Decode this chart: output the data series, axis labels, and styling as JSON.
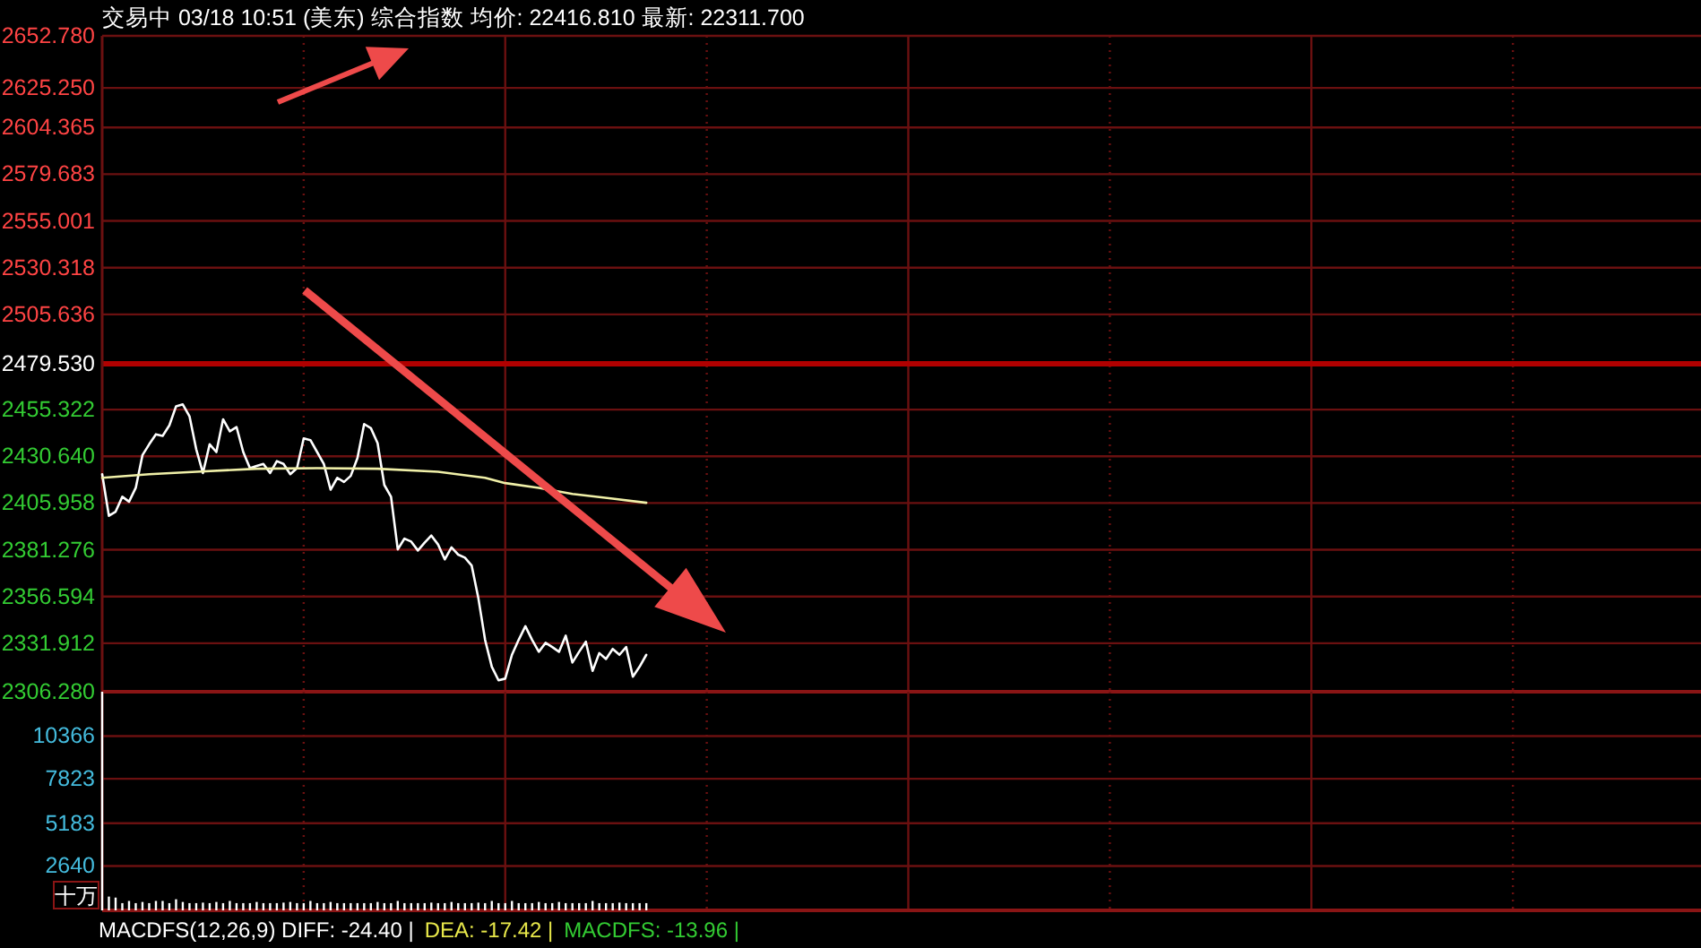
{
  "chart_data": [
    {
      "type": "line",
      "title": "交易中 03/18 10:51 (美东) 综合指数 均价: 22416.810 最新: 22311.700",
      "categories": [
        null,
        null,
        null,
        null,
        null,
        null,
        null,
        null,
        null,
        null,
        null,
        null,
        null,
        null,
        null,
        null,
        null,
        null,
        null,
        null,
        null,
        null,
        null,
        null,
        null,
        null,
        null,
        null,
        null,
        null,
        null,
        null,
        null,
        null,
        null,
        null,
        null,
        null,
        null,
        null,
        null,
        null,
        null,
        null,
        null,
        null,
        null,
        null,
        null,
        null,
        null,
        null,
        null,
        null,
        null,
        null,
        null,
        null,
        null,
        null,
        null,
        null,
        null,
        null,
        null,
        null,
        null,
        null,
        null,
        null,
        null,
        null,
        null,
        null,
        null,
        null,
        null,
        null,
        null,
        null,
        null,
        null,
        null,
        null,
        null,
        null,
        null,
        null,
        null,
        null,
        null,
        null,
        null,
        null,
        null,
        null,
        null,
        null,
        null,
        null,
        null,
        null,
        null,
        null,
        null,
        null,
        null,
        null,
        null,
        null,
        null,
        null,
        null,
        null,
        null,
        null,
        null,
        null,
        null,
        null,
        null,
        null,
        null,
        null,
        null,
        null,
        null,
        null,
        null,
        null,
        null,
        null,
        null,
        null,
        null,
        null,
        null,
        null,
        null,
        null,
        null,
        null,
        null,
        null,
        null,
        null,
        null,
        null,
        null,
        null,
        null,
        null,
        null,
        null,
        null,
        null,
        null,
        null,
        null,
        null,
        null,
        null,
        null,
        null,
        null,
        null,
        null,
        null,
        null,
        null,
        null,
        null,
        null,
        null,
        null,
        null,
        null,
        null,
        null,
        null,
        null,
        null,
        null,
        null,
        null,
        null,
        null,
        null,
        null,
        null,
        null,
        null,
        null,
        null,
        null,
        null,
        null,
        null,
        null,
        null,
        null,
        null,
        null,
        null,
        null,
        null,
        null,
        null,
        null,
        null,
        null,
        null,
        null,
        null,
        null,
        null,
        null,
        null,
        null,
        null,
        null,
        null,
        null,
        null,
        null,
        null,
        null,
        null,
        null,
        null,
        null,
        null,
        null,
        null,
        null,
        null,
        null,
        null,
        null
      ],
      "series": [
        {
          "color": "#ffffff",
          "values": [
            2421.2,
            2399.2,
            2401.4,
            2409.3,
            2406.7,
            2414.0,
            2431.3,
            2437.0,
            2442.3,
            2441.4,
            2447.0,
            2457.1,
            2458.1,
            2451.8,
            2434.4,
            2421.8,
            2437.0,
            2432.9,
            2450.2,
            2443.9,
            2446.1,
            2432.9,
            2424.4,
            2425.6,
            2426.6,
            2421.8,
            2428.1,
            2426.6,
            2421.2,
            2424.4,
            2440.1,
            2439.2,
            2432.9,
            2426.6,
            2413.0,
            2419.3,
            2417.1,
            2420.3,
            2429.7,
            2447.7,
            2445.5,
            2437.6,
            2415.5,
            2409.3,
            2381.5,
            2387.2,
            2385.6,
            2380.9,
            2385.0,
            2388.8,
            2384.1,
            2376.2,
            2382.5,
            2378.7,
            2377.1,
            2373.0,
            2355.7,
            2333.7,
            2319.5,
            2312.3,
            2313.2,
            2325.8,
            2333.7,
            2340.9,
            2333.7,
            2327.4,
            2332.1,
            2329.9,
            2327.4,
            2335.9,
            2321.7,
            2327.4,
            2332.7,
            2317.3,
            2326.7,
            2323.6,
            2328.9,
            2325.8,
            2329.9,
            2314.2,
            2319.5,
            2325.8,
            null,
            null,
            null,
            null,
            null,
            null,
            null,
            null,
            null,
            null,
            null,
            null,
            null,
            null,
            null,
            null,
            null,
            null,
            null,
            null,
            null,
            null,
            null,
            null,
            null,
            null,
            null,
            null,
            null,
            null,
            null,
            null,
            null,
            null,
            null,
            null,
            null,
            null,
            null,
            null,
            null,
            null,
            null,
            null,
            null,
            null,
            null,
            null,
            null,
            null,
            null,
            null,
            null,
            null,
            null,
            null,
            null,
            null,
            null,
            null,
            null,
            null,
            null,
            null,
            null,
            null,
            null,
            null,
            null,
            null,
            null,
            null,
            null,
            null,
            null,
            null,
            null,
            null,
            null,
            null,
            null,
            null,
            null,
            null,
            null,
            null,
            null,
            null,
            null,
            null,
            null,
            null,
            null,
            null,
            null,
            null,
            null,
            null,
            null,
            null,
            null,
            null,
            null,
            null,
            null,
            null,
            null,
            null,
            null,
            null,
            null,
            null,
            null,
            null,
            null,
            null,
            null,
            null,
            null,
            null,
            null,
            null,
            null,
            null,
            null,
            null,
            null,
            null,
            null,
            null,
            null,
            null,
            null,
            null,
            null,
            null,
            null,
            null,
            null,
            null,
            null,
            null,
            null,
            null,
            null,
            null,
            null,
            null,
            null,
            null,
            null,
            null,
            null,
            null,
            null,
            null,
            null
          ]
        },
        {
          "color": "#f0f0a8",
          "values": [
            2419.3,
            null,
            null,
            null,
            null,
            null,
            null,
            2421.2,
            null,
            null,
            null,
            null,
            null,
            null,
            2422.5,
            null,
            null,
            null,
            null,
            null,
            null,
            null,
            null,
            2424.1,
            null,
            null,
            null,
            null,
            null,
            null,
            null,
            null,
            2424.4,
            null,
            null,
            null,
            null,
            null,
            null,
            null,
            null,
            2424.1,
            null,
            null,
            null,
            null,
            null,
            null,
            null,
            null,
            2422.5,
            null,
            null,
            null,
            null,
            null,
            null,
            2419.3,
            null,
            null,
            2416.5,
            null,
            null,
            null,
            null,
            2414.0,
            null,
            null,
            null,
            null,
            2410.8,
            null,
            null,
            null,
            null,
            null,
            2408.3,
            null,
            null,
            null,
            null,
            2406.1,
            null,
            null,
            null,
            null,
            null,
            null,
            null,
            null,
            null,
            null,
            null,
            null,
            null,
            null,
            null,
            null,
            null,
            null,
            null,
            null,
            null,
            null,
            null,
            null,
            null,
            null,
            null,
            null,
            null,
            null,
            null,
            null,
            null,
            null,
            null,
            null,
            null,
            null,
            null,
            null,
            null,
            null,
            null,
            null,
            null,
            null,
            null,
            null,
            null,
            null,
            null,
            null,
            null,
            null,
            null,
            null,
            null,
            null,
            null,
            null,
            null,
            null,
            null,
            null,
            null,
            null,
            null,
            null,
            null,
            null,
            null,
            null,
            null,
            null,
            null,
            null,
            null,
            null,
            null,
            null,
            null,
            null,
            null,
            null,
            null,
            null,
            null,
            null,
            null,
            null,
            null,
            null,
            null,
            null,
            null,
            null,
            null,
            null,
            null,
            null,
            null,
            null,
            null,
            null,
            null,
            null,
            null,
            null,
            null,
            null,
            null,
            null,
            null,
            null,
            null,
            null,
            null,
            null,
            null,
            null,
            null,
            null,
            null,
            null,
            null,
            null,
            null,
            null,
            null,
            null,
            null,
            null,
            null,
            null,
            null,
            null,
            null,
            null,
            null,
            null,
            null,
            null,
            null,
            null,
            null,
            null,
            null,
            null,
            null,
            null,
            null,
            null,
            null,
            null,
            null,
            null,
            null
          ]
        }
      ],
      "ylim": [
        2306.28,
        2652.78
      ],
      "yticks": [
        {
          "value": 2306.28,
          "label": "2306.280"
        },
        {
          "value": 2331.912,
          "label": "2331.912"
        },
        {
          "value": 2356.594,
          "label": "2356.594"
        },
        {
          "value": 2381.276,
          "label": "2381.276"
        },
        {
          "value": 2405.958,
          "label": "2405.958"
        },
        {
          "value": 2430.64,
          "label": "2430.640"
        },
        {
          "value": 2455.322,
          "label": "2455.322"
        },
        {
          "value": 2479.53,
          "label": "2479.530"
        },
        {
          "value": 2505.636,
          "label": "2505.636"
        },
        {
          "value": 2530.318,
          "label": "2530.318"
        },
        {
          "value": 2555.001,
          "label": "2555.001"
        },
        {
          "value": 2579.683,
          "label": "2579.683"
        },
        {
          "value": 2604.365,
          "label": "2604.365"
        },
        {
          "value": 2625.25,
          "label": "2625.250"
        },
        {
          "value": 2652.78,
          "label": "2652.780"
        }
      ],
      "tick_labels": "y",
      "grid": true,
      "ref_lines": [
        {
          "axis": "y",
          "value": 2479.53,
          "color": "#b00000"
        }
      ]
    },
    {
      "type": "bar",
      "ylabel": "十万",
      "color": "#ffffff",
      "categories": [
        null,
        null,
        null,
        null,
        null,
        null,
        null,
        null,
        null,
        null,
        null,
        null,
        null,
        null,
        null,
        null,
        null,
        null,
        null,
        null,
        null,
        null,
        null,
        null,
        null,
        null,
        null,
        null,
        null,
        null,
        null,
        null,
        null,
        null,
        null,
        null,
        null,
        null,
        null,
        null,
        null,
        null,
        null,
        null,
        null,
        null,
        null,
        null,
        null,
        null,
        null,
        null,
        null,
        null,
        null,
        null,
        null,
        null,
        null,
        null,
        null,
        null,
        null,
        null,
        null,
        null,
        null,
        null,
        null,
        null,
        null,
        null,
        null,
        null,
        null,
        null,
        null,
        null,
        null,
        null,
        null,
        null,
        null,
        null,
        null,
        null,
        null,
        null,
        null,
        null,
        null,
        null,
        null,
        null,
        null,
        null,
        null,
        null,
        null,
        null,
        null,
        null,
        null,
        null,
        null,
        null,
        null,
        null,
        null,
        null,
        null,
        null,
        null,
        null,
        null,
        null,
        null,
        null,
        null,
        null,
        null,
        null,
        null,
        null,
        null,
        null,
        null,
        null,
        null,
        null,
        null,
        null,
        null,
        null,
        null,
        null,
        null,
        null,
        null,
        null,
        null,
        null,
        null,
        null,
        null,
        null,
        null,
        null,
        null,
        null,
        null,
        null,
        null,
        null,
        null,
        null,
        null,
        null,
        null,
        null,
        null,
        null,
        null,
        null,
        null,
        null,
        null,
        null,
        null,
        null,
        null,
        null,
        null,
        null,
        null,
        null,
        null,
        null,
        null,
        null,
        null,
        null,
        null,
        null,
        null,
        null,
        null,
        null,
        null,
        null,
        null,
        null,
        null,
        null,
        null,
        null,
        null,
        null,
        null,
        null,
        null,
        null,
        null,
        null,
        null,
        null,
        null,
        null,
        null,
        null,
        null,
        null,
        null,
        null,
        null,
        null,
        null,
        null,
        null,
        null,
        null,
        null,
        null,
        null,
        null,
        null,
        null,
        null,
        null,
        null,
        null,
        null,
        null,
        null,
        null,
        null,
        null,
        null,
        null
      ],
      "values": [
        13000,
        820,
        760,
        430,
        560,
        430,
        500,
        430,
        560,
        560,
        430,
        660,
        500,
        430,
        430,
        460,
        430,
        500,
        430,
        560,
        430,
        430,
        430,
        500,
        430,
        430,
        430,
        460,
        500,
        430,
        430,
        560,
        430,
        430,
        500,
        430,
        430,
        430,
        430,
        430,
        430,
        500,
        430,
        430,
        560,
        430,
        430,
        430,
        430,
        460,
        430,
        430,
        500,
        430,
        430,
        430,
        460,
        430,
        560,
        430,
        430,
        560,
        430,
        430,
        430,
        500,
        430,
        430,
        500,
        430,
        430,
        430,
        430,
        560,
        430,
        430,
        430,
        460,
        430,
        430,
        430,
        430,
        null,
        null,
        null,
        null,
        null,
        null,
        null,
        null,
        null,
        null,
        null,
        null,
        null,
        null,
        null,
        null,
        null,
        null,
        null,
        null,
        null,
        null,
        null,
        null,
        null,
        null,
        null,
        null,
        null,
        null,
        null,
        null,
        null,
        null,
        null,
        null,
        null,
        null,
        null,
        null,
        null,
        null,
        null,
        null,
        null,
        null,
        null,
        null,
        null,
        null,
        null,
        null,
        null,
        null,
        null,
        null,
        null,
        null,
        null,
        null,
        null,
        null,
        null,
        null,
        null,
        null,
        null,
        null,
        null,
        null,
        null,
        null,
        null,
        null,
        null,
        null,
        null,
        null,
        null,
        null,
        null,
        null,
        null,
        null,
        null,
        null,
        null,
        null,
        null,
        null,
        null,
        null,
        null,
        null,
        null,
        null,
        null,
        null,
        null,
        null,
        null,
        null,
        null,
        null,
        null,
        null,
        null,
        null,
        null,
        null,
        null,
        null,
        null,
        null,
        null,
        null,
        null,
        null,
        null,
        null,
        null,
        null,
        null,
        null,
        null,
        null,
        null,
        null,
        null,
        null,
        null,
        null,
        null,
        null,
        null,
        null,
        null,
        null,
        null,
        null,
        null,
        null,
        null,
        null,
        null,
        null,
        null,
        null,
        null,
        null,
        null,
        null,
        null,
        null,
        null,
        null,
        null
      ],
      "ylim": [
        0,
        13000
      ],
      "yticks": [
        2640,
        5183,
        7823,
        10366
      ],
      "tick_labels": "y",
      "grid": true,
      "annotations": [
        "MACDFS(12,26,9) DIFF: -24.40 |",
        "DEA: -17.42 |",
        "MACDFS: -13.96 |"
      ]
    }
  ]
}
